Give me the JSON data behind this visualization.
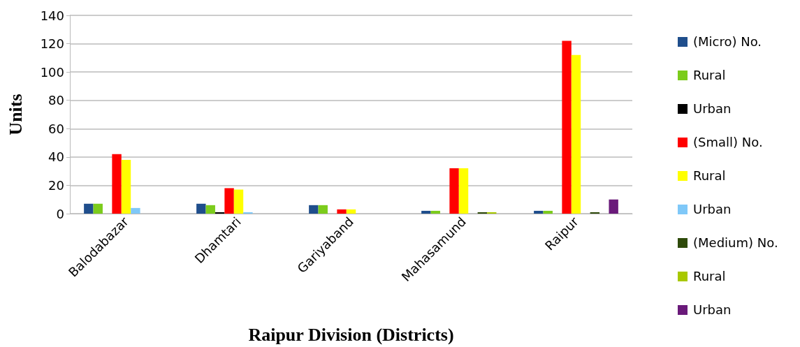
{
  "chart_data": {
    "type": "bar",
    "xlabel": "Raipur Division (Districts)",
    "ylabel": "Units",
    "categories": [
      "Balodabazar",
      "Dhamtari",
      "Gariyaband",
      "Mahasamund",
      "Raipur"
    ],
    "series": [
      {
        "name": "(Micro) No.",
        "color": "#1f4e8c",
        "values": [
          7,
          7,
          6,
          2,
          2
        ]
      },
      {
        "name": "Rural",
        "color": "#7ccc1c",
        "values": [
          7,
          6,
          6,
          2,
          2
        ]
      },
      {
        "name": "Urban",
        "color": "#000000",
        "values": [
          0,
          1,
          0,
          0,
          0
        ]
      },
      {
        "name": "(Small) No.",
        "color": "#ff0000",
        "values": [
          42,
          18,
          3,
          32,
          122
        ]
      },
      {
        "name": "Rural",
        "color": "#ffff00",
        "values": [
          38,
          17,
          3,
          32,
          112
        ]
      },
      {
        "name": "Urban",
        "color": "#7fc8f8",
        "values": [
          4,
          1,
          0,
          0,
          0
        ]
      },
      {
        "name": "(Medium) No.",
        "color": "#2e4a0a",
        "values": [
          0,
          0,
          0,
          1,
          1
        ]
      },
      {
        "name": "Rural",
        "color": "#a8c800",
        "values": [
          0,
          0,
          0,
          1,
          0
        ]
      },
      {
        "name": "Urban",
        "color": "#6a1a7a",
        "values": [
          0,
          0,
          0,
          0,
          10
        ]
      }
    ],
    "ylim": [
      0,
      140
    ],
    "yticks": [
      0,
      20,
      40,
      60,
      80,
      100,
      120,
      140
    ],
    "grid": "y",
    "legend": "right"
  }
}
